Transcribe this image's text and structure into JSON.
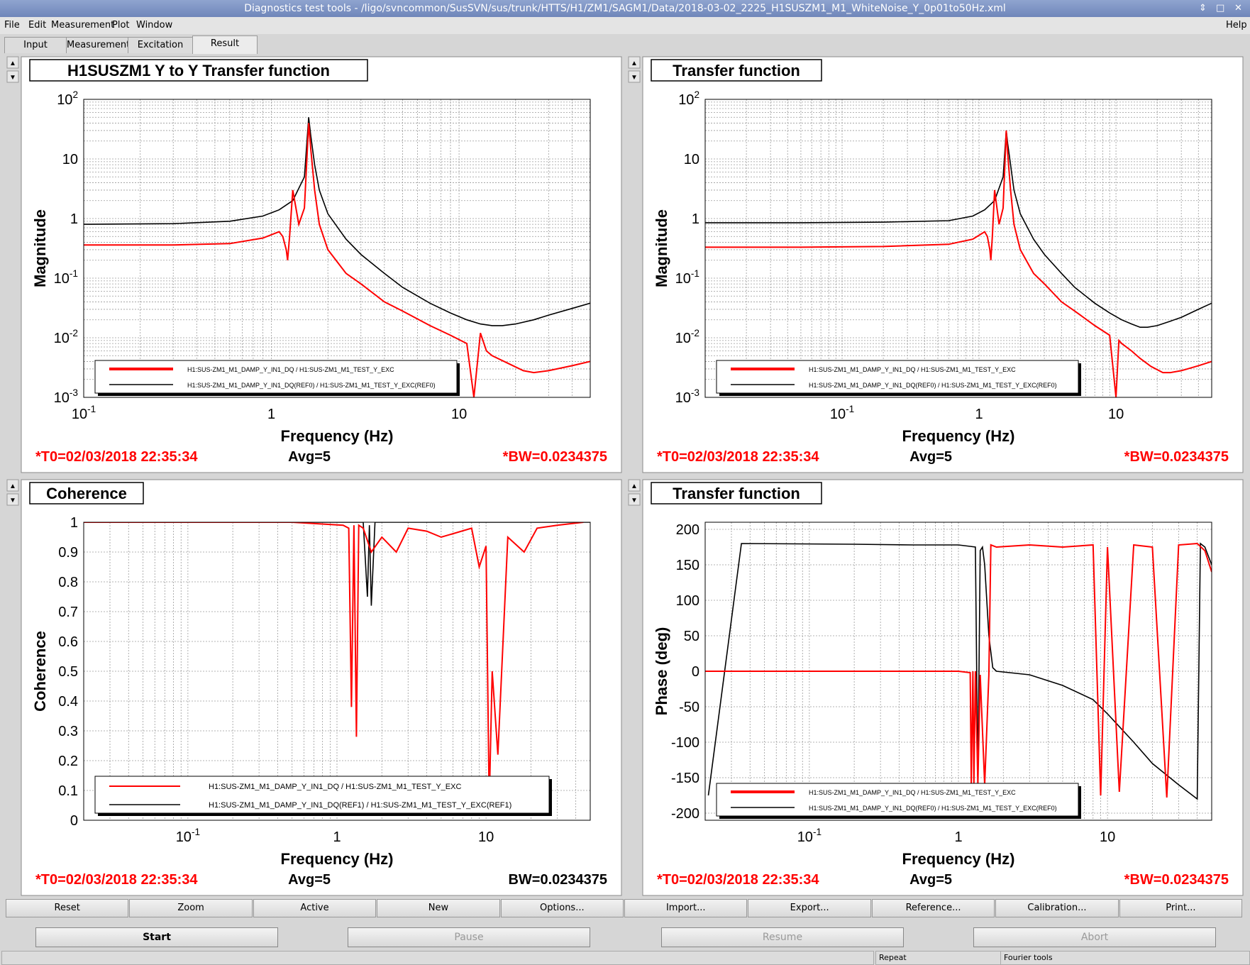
{
  "window": {
    "title": "Diagnostics test tools - /ligo/svncommon/SusSVN/sus/trunk/HTTS/H1/ZM1/SAGM1/Data/2018-03-02_2225_H1SUSZM1_M1_WhiteNoise_Y_0p01to50Hz.xml",
    "controls": [
      "⇕",
      "□",
      "✕"
    ]
  },
  "menu": {
    "file": "File",
    "edit": "Edit",
    "measurement": "Measurement",
    "plot": "Plot",
    "window": "Window",
    "help": "Help"
  },
  "tabs": [
    "Input",
    "Measurement",
    "Excitation",
    "Result"
  ],
  "panels": [
    {
      "title": "H1SUSZM1 Y to Y Transfer function",
      "ylabel": "Magnitude",
      "xlabel": "Frequency (Hz)",
      "t0": "*T0=02/03/2018 22:35:34",
      "avg": "Avg=5",
      "bw": "*BW=0.0234375",
      "bw_red": true,
      "legend": [
        "H1:SUS-ZM1_M1_DAMP_Y_IN1_DQ / H1:SUS-ZM1_M1_TEST_Y_EXC",
        "H1:SUS-ZM1_M1_DAMP_Y_IN1_DQ(REF0) / H1:SUS-ZM1_M1_TEST_Y_EXC(REF0)"
      ]
    },
    {
      "title": "Transfer function",
      "ylabel": "Magnitude",
      "xlabel": "Frequency (Hz)",
      "t0": "*T0=02/03/2018 22:35:34",
      "avg": "Avg=5",
      "bw": "*BW=0.0234375",
      "bw_red": true,
      "legend": [
        "H1:SUS-ZM1_M1_DAMP_Y_IN1_DQ / H1:SUS-ZM1_M1_TEST_Y_EXC",
        "H1:SUS-ZM1_M1_DAMP_Y_IN1_DQ(REF0) / H1:SUS-ZM1_M1_TEST_Y_EXC(REF0)"
      ]
    },
    {
      "title": "Coherence",
      "ylabel": "Coherence",
      "xlabel": "Frequency (Hz)",
      "t0": "*T0=02/03/2018 22:35:34",
      "avg": "Avg=5",
      "bw": "BW=0.0234375",
      "bw_red": false,
      "legend": [
        "H1:SUS-ZM1_M1_DAMP_Y_IN1_DQ / H1:SUS-ZM1_M1_TEST_Y_EXC",
        "H1:SUS-ZM1_M1_DAMP_Y_IN1_DQ(REF1) / H1:SUS-ZM1_M1_TEST_Y_EXC(REF1)"
      ]
    },
    {
      "title": "Transfer function",
      "ylabel": "Phase (deg)",
      "xlabel": "Frequency (Hz)",
      "t0": "*T0=02/03/2018 22:35:34",
      "avg": "Avg=5",
      "bw": "*BW=0.0234375",
      "bw_red": true,
      "legend": [
        "H1:SUS-ZM1_M1_DAMP_Y_IN1_DQ / H1:SUS-ZM1_M1_TEST_Y_EXC",
        "H1:SUS-ZM1_M1_DAMP_Y_IN1_DQ(REF0) / H1:SUS-ZM1_M1_TEST_Y_EXC(REF0)"
      ]
    }
  ],
  "chart_data": [
    {
      "type": "line",
      "xscale": "log",
      "yscale": "log",
      "xlim": [
        0.1,
        50
      ],
      "ylim": [
        0.001,
        100
      ],
      "xticks": [
        "10^-1",
        "1",
        "10"
      ],
      "yticks": [
        "10^-3",
        "10^-2",
        "10^-1",
        "1",
        "10",
        "10^2"
      ],
      "grid": true,
      "legend_position": "bottom-left",
      "colors": [
        "#ff0000",
        "#000000"
      ],
      "series": [
        {
          "x": [
            0.1,
            0.3,
            0.6,
            0.9,
            1.1,
            1.15,
            1.2,
            1.22,
            1.25,
            1.3,
            1.4,
            1.5,
            1.58,
            1.62,
            1.7,
            1.8,
            2,
            2.5,
            3,
            4,
            5,
            7,
            9,
            11,
            12,
            13,
            14,
            15,
            18,
            22,
            25,
            30,
            40,
            50
          ],
          "y": [
            0.36,
            0.36,
            0.38,
            0.47,
            0.6,
            0.5,
            0.3,
            0.2,
            0.5,
            3,
            0.8,
            1.5,
            40,
            15,
            3,
            0.8,
            0.3,
            0.12,
            0.08,
            0.04,
            0.028,
            0.016,
            0.011,
            0.008,
            0.001,
            0.012,
            0.006,
            0.005,
            0.0038,
            0.0028,
            0.0026,
            0.0028,
            0.0034,
            0.004
          ]
        },
        {
          "x": [
            0.1,
            0.3,
            0.6,
            0.9,
            1.1,
            1.3,
            1.5,
            1.58,
            1.62,
            1.7,
            1.8,
            2,
            2.5,
            3,
            4,
            5,
            7,
            9,
            11,
            13,
            15,
            17,
            20,
            25,
            30,
            40,
            50
          ],
          "y": [
            0.8,
            0.82,
            0.9,
            1.1,
            1.4,
            2,
            5,
            50,
            25,
            8,
            3,
            1.2,
            0.45,
            0.25,
            0.12,
            0.07,
            0.038,
            0.026,
            0.02,
            0.017,
            0.016,
            0.016,
            0.017,
            0.02,
            0.024,
            0.031,
            0.038
          ]
        }
      ]
    },
    {
      "type": "line",
      "xscale": "log",
      "yscale": "log",
      "xlim": [
        0.01,
        50
      ],
      "ylim": [
        0.001,
        100
      ],
      "xticks": [
        "10^-1",
        "1",
        "10"
      ],
      "yticks": [
        "10^-3",
        "10^-2",
        "10^-1",
        "1",
        "10",
        "10^2"
      ],
      "grid": true,
      "legend_position": "bottom-left",
      "colors": [
        "#ff0000",
        "#000000"
      ],
      "series": [
        {
          "x": [
            0.01,
            0.05,
            0.2,
            0.6,
            0.9,
            1.1,
            1.15,
            1.2,
            1.22,
            1.25,
            1.3,
            1.4,
            1.5,
            1.58,
            1.62,
            1.7,
            1.8,
            2,
            2.5,
            3,
            4,
            5,
            7,
            9,
            10,
            10.5,
            11,
            13,
            15,
            18,
            22,
            25,
            30,
            40,
            50
          ],
          "y": [
            0.33,
            0.33,
            0.34,
            0.37,
            0.45,
            0.6,
            0.5,
            0.3,
            0.2,
            0.5,
            3,
            0.8,
            1.5,
            30,
            12,
            3,
            0.8,
            0.3,
            0.12,
            0.08,
            0.04,
            0.028,
            0.016,
            0.011,
            0.001,
            0.009,
            0.008,
            0.006,
            0.0045,
            0.0033,
            0.0026,
            0.0026,
            0.0028,
            0.0034,
            0.004
          ]
        },
        {
          "x": [
            0.01,
            0.05,
            0.2,
            0.6,
            0.9,
            1.1,
            1.3,
            1.5,
            1.58,
            1.62,
            1.7,
            1.8,
            2,
            2.5,
            3,
            4,
            5,
            7,
            9,
            11,
            13,
            15,
            17,
            20,
            25,
            30,
            40,
            50
          ],
          "y": [
            0.85,
            0.85,
            0.87,
            0.92,
            1.1,
            1.4,
            2,
            5,
            30,
            18,
            8,
            3,
            1.2,
            0.45,
            0.25,
            0.12,
            0.07,
            0.038,
            0.026,
            0.02,
            0.017,
            0.015,
            0.015,
            0.016,
            0.019,
            0.022,
            0.03,
            0.038
          ]
        }
      ]
    },
    {
      "type": "line",
      "xscale": "log",
      "yscale": "linear",
      "xlim": [
        0.02,
        50
      ],
      "ylim": [
        0,
        1
      ],
      "xticks": [
        "10^-1",
        "1",
        "10"
      ],
      "yticks": [
        "0",
        "0.1",
        "0.2",
        "0.3",
        "0.4",
        "0.5",
        "0.6",
        "0.7",
        "0.8",
        "0.9",
        "1"
      ],
      "grid": true,
      "legend_position": "bottom",
      "colors": [
        "#ff0000",
        "#000000"
      ],
      "series": [
        {
          "x": [
            0.02,
            0.5,
            1.1,
            1.2,
            1.25,
            1.3,
            1.35,
            1.4,
            1.5,
            1.7,
            2,
            2.5,
            3,
            4,
            5,
            8,
            9,
            10,
            10.5,
            11,
            12,
            14,
            18,
            22,
            30,
            45
          ],
          "y": [
            1,
            1,
            0.99,
            0.98,
            0.38,
            0.99,
            0.28,
            0.99,
            0.98,
            0.9,
            0.95,
            0.9,
            0.98,
            0.97,
            0.95,
            0.98,
            0.85,
            0.92,
            0.05,
            0.5,
            0.22,
            0.95,
            0.9,
            0.98,
            0.99,
            1
          ]
        },
        {
          "x": [
            0.02,
            1,
            1.5,
            1.6,
            1.65,
            1.7,
            1.8,
            2,
            3,
            50
          ],
          "y": [
            1,
            1,
            1,
            0.75,
            0.99,
            0.72,
            1,
            1,
            1,
            1
          ]
        }
      ]
    },
    {
      "type": "line",
      "xscale": "log",
      "yscale": "linear",
      "xlim": [
        0.02,
        50
      ],
      "ylim": [
        -210,
        210
      ],
      "xticks": [
        "10^-1",
        "1",
        "10"
      ],
      "yticks": [
        "-200",
        "-150",
        "-100",
        "-50",
        "0",
        "50",
        "100",
        "150",
        "200"
      ],
      "grid": true,
      "legend_position": "bottom-left",
      "colors": [
        "#ff0000",
        "#000000"
      ],
      "series": [
        {
          "x": [
            0.02,
            0.5,
            1.0,
            1.2,
            1.22,
            1.25,
            1.27,
            1.3,
            1.35,
            1.4,
            1.5,
            1.6,
            1.65,
            1.8,
            3,
            5,
            8,
            9,
            10,
            12,
            15,
            20,
            25,
            30,
            40,
            45,
            50
          ],
          "y": [
            0,
            0,
            0,
            -2,
            -160,
            0,
            -160,
            0,
            -160,
            -5,
            -160,
            -5,
            178,
            175,
            178,
            175,
            178,
            -175,
            175,
            -170,
            178,
            175,
            -178,
            178,
            180,
            170,
            140
          ]
        },
        {
          "x": [
            0.021,
            0.035,
            0.2,
            0.5,
            1.0,
            1.2,
            1.3,
            1.35,
            1.4,
            1.45,
            1.5,
            1.6,
            1.7,
            1.8,
            3,
            5,
            8,
            10,
            15,
            20,
            30,
            40,
            42,
            45,
            50
          ],
          "y": [
            -175,
            180,
            179,
            178,
            178,
            176,
            175,
            -160,
            170,
            175,
            150,
            50,
            5,
            0,
            -5,
            -20,
            -40,
            -60,
            -100,
            -130,
            -160,
            -180,
            180,
            175,
            150
          ]
        }
      ]
    }
  ],
  "buttons": [
    "Reset",
    "Zoom",
    "Active",
    "New",
    "Options...",
    "Import...",
    "Export...",
    "Reference...",
    "Calibration...",
    "Print..."
  ],
  "controls": [
    "Start",
    "Pause",
    "Resume",
    "Abort"
  ],
  "status": [
    "Repeat",
    "Fourier tools"
  ]
}
